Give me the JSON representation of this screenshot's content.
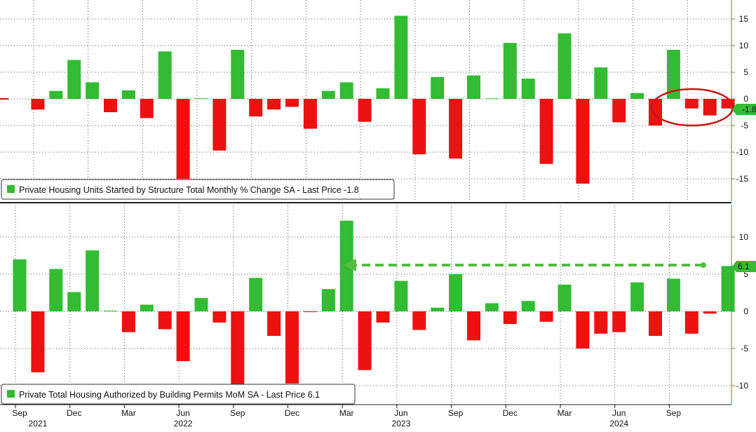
{
  "colors": {
    "positive": "#33bb33",
    "negative": "#ee1111",
    "axis": "#33aa33",
    "grid": "#555555",
    "highlight_ellipse": "#cc1111",
    "arrow": "#55bb44"
  },
  "x_axis": {
    "ticks": [
      {
        "label": "Sep",
        "index": 0
      },
      {
        "label": "Dec",
        "index": 3
      },
      {
        "label": "Mar",
        "index": 6
      },
      {
        "label": "Jun",
        "index": 9
      },
      {
        "label": "Sep",
        "index": 12
      },
      {
        "label": "Dec",
        "index": 15
      },
      {
        "label": "Mar",
        "index": 18
      },
      {
        "label": "Jun",
        "index": 21
      },
      {
        "label": "Sep",
        "index": 24
      },
      {
        "label": "Dec",
        "index": 27
      },
      {
        "label": "Mar",
        "index": 30
      },
      {
        "label": "Jun",
        "index": 33
      },
      {
        "label": "Sep",
        "index": 36
      }
    ],
    "years": [
      {
        "label": "2021",
        "index": 1
      },
      {
        "label": "2022",
        "index": 9
      },
      {
        "label": "2023",
        "index": 21
      },
      {
        "label": "2024",
        "index": 33
      }
    ]
  },
  "chart_data": [
    {
      "type": "bar",
      "legend": "Private Housing Units Started by Structure Total Monthly % Change SA - Last Price -1.8",
      "last_value_label": "-1.8",
      "ylim": [
        -18,
        18
      ],
      "yticks": [
        15,
        10,
        5,
        0,
        -5,
        -10,
        -15
      ],
      "ytick_labels": [
        "15",
        "10",
        "5",
        "0",
        "-5",
        "-10",
        "-15"
      ],
      "grid": true,
      "legend_position": "bottom-left",
      "highlight": "ellipse around last three bars",
      "values": [
        -2,
        1.5,
        7.3,
        3.1,
        -2.5,
        1.6,
        -3.6,
        8.9,
        -15,
        0.1,
        -9.7,
        9.2,
        -3.3,
        -2,
        -1.5,
        -5.6,
        1.5,
        3.1,
        -4.3,
        2,
        15.6,
        -10.4,
        4.1,
        -11.2,
        4.4,
        0.1,
        10.5,
        3.8,
        -12.2,
        12.3,
        -15.9,
        5.9,
        -4.4,
        1.1,
        -5,
        9.2,
        -1.8,
        -3.1,
        -1.8
      ]
    },
    {
      "type": "bar",
      "legend": "Private Total Housing Authorized by Building Permits MoM SA - Last Price 6.1",
      "last_value_label": "6.1",
      "ylim": [
        -12.5,
        14.5
      ],
      "yticks": [
        10,
        5,
        0,
        -5,
        -10
      ],
      "ytick_labels": [
        "10",
        "5",
        "0",
        "-5",
        "-10"
      ],
      "grid": true,
      "legend_position": "bottom-left",
      "highlight": "dashed arrow from last bar back to the same level",
      "values": [
        7,
        -8.2,
        5.7,
        2.6,
        8.2,
        0.1,
        -2.8,
        0.9,
        -2.4,
        -6.7,
        1.8,
        -1.5,
        -10.5,
        4.5,
        -3.3,
        -9.7,
        -0.1,
        3,
        12.2,
        -7.9,
        -1.5,
        4.1,
        -2.5,
        0.5,
        5,
        -3.9,
        1.1,
        -1.7,
        1.4,
        -1.4,
        3.6,
        -5,
        -3,
        -2.8,
        3.9,
        -3.3,
        4.4,
        -3,
        -0.3,
        6.1
      ]
    }
  ]
}
